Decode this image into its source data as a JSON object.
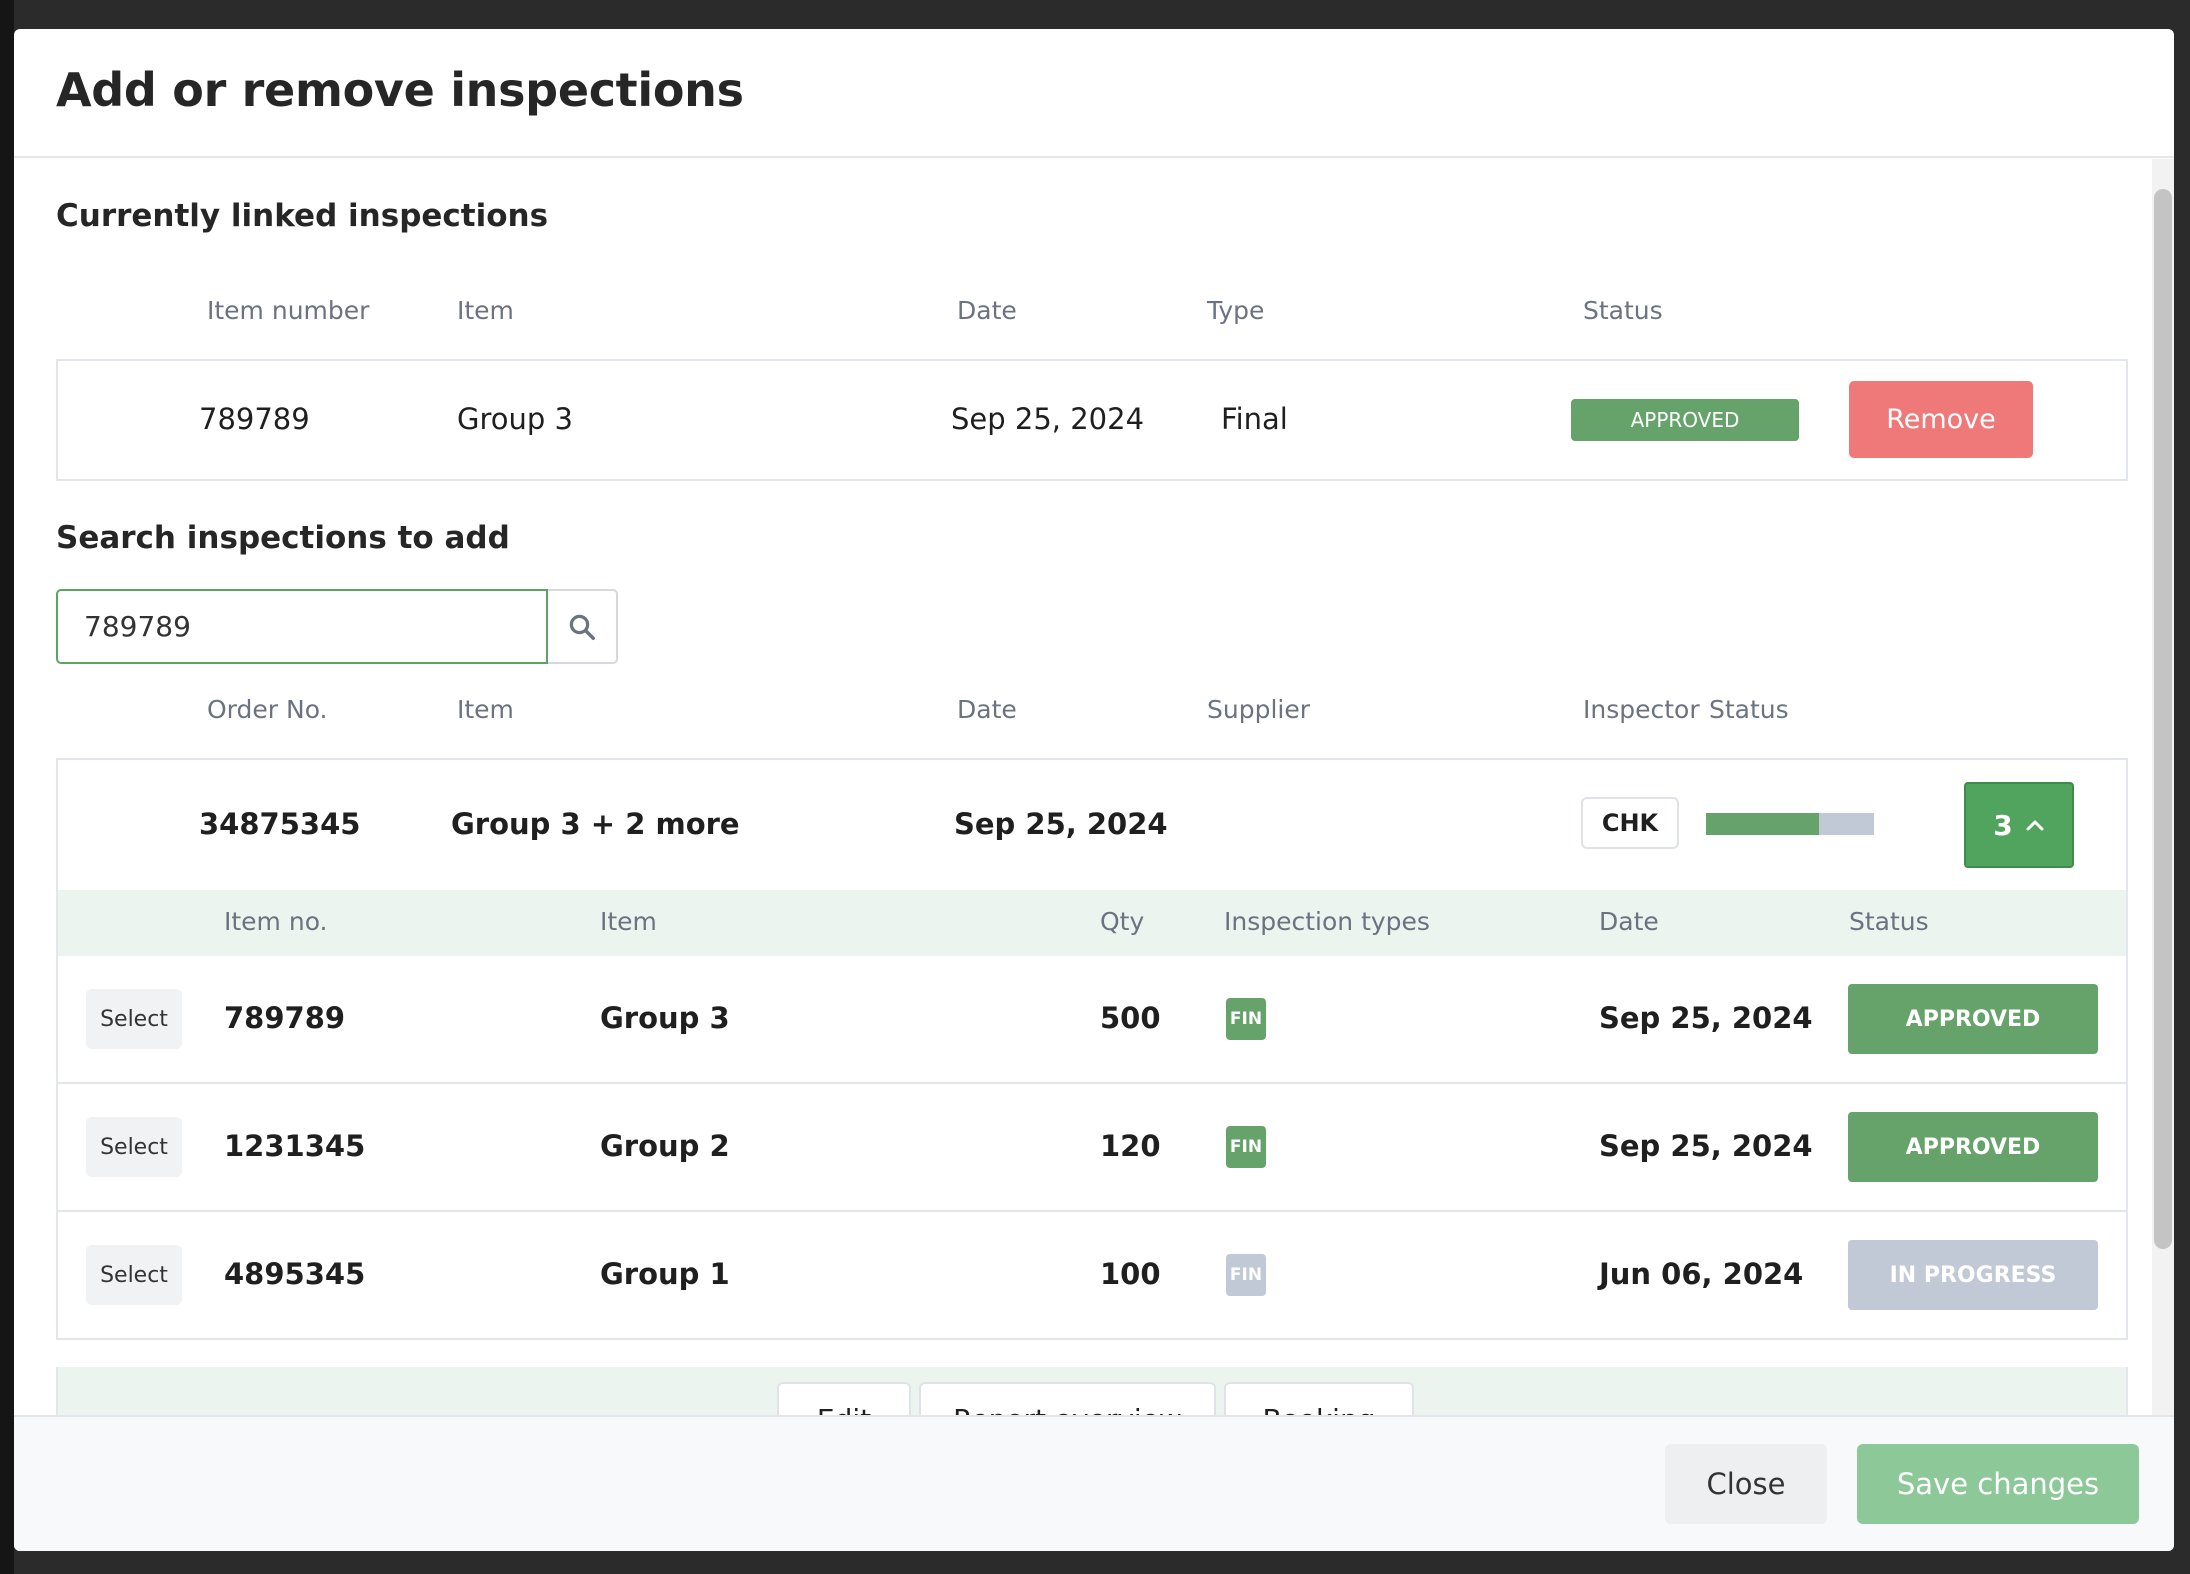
{
  "modal": {
    "title": "Add or remove inspections"
  },
  "linked": {
    "title": "Currently linked inspections",
    "headers": {
      "item_number": "Item number",
      "item": "Item",
      "date": "Date",
      "type": "Type",
      "status": "Status"
    },
    "row": {
      "item_number": "789789",
      "item": "Group 3",
      "date": "Sep 25, 2024",
      "type": "Final",
      "status": "APPROVED",
      "remove_label": "Remove"
    }
  },
  "search": {
    "title": "Search inspections to add",
    "value": "789789",
    "headers": {
      "order_no": "Order No.",
      "item": "Item",
      "date": "Date",
      "supplier": "Supplier",
      "inspector": "Inspector",
      "status": "Status"
    },
    "order": {
      "order_no": "34875345",
      "item": "Group 3 + 2 more",
      "date": "Sep 25, 2024",
      "inspector": "CHK",
      "progress_fraction": 0.67,
      "count": "3"
    },
    "sub_headers": {
      "item_no": "Item no.",
      "item": "Item",
      "qty": "Qty",
      "inspection_types": "Inspection types",
      "date": "Date",
      "status": "Status"
    },
    "sub_rows": [
      {
        "select_label": "Select",
        "item_no": "789789",
        "item": "Group 3",
        "qty": "500",
        "type": "FIN",
        "date": "Sep 25, 2024",
        "status": "APPROVED"
      },
      {
        "select_label": "Select",
        "item_no": "1231345",
        "item": "Group 2",
        "qty": "120",
        "type": "FIN",
        "date": "Sep 25, 2024",
        "status": "APPROVED"
      },
      {
        "select_label": "Select",
        "item_no": "4895345",
        "item": "Group 1",
        "qty": "100",
        "type": "FIN",
        "date": "Jun 06, 2024",
        "status": "IN PROGRESS"
      }
    ],
    "actions": {
      "edit": "Edit",
      "report_overview": "Report overview",
      "booking": "Booking"
    }
  },
  "footer": {
    "close_label": "Close",
    "save_label": "Save changes"
  },
  "colors": {
    "approved": "#66a36a",
    "in_progress": "#c1c8d6",
    "remove": "#ef7878",
    "accent": "#51a45d",
    "save": "#8dc898"
  },
  "icons": {
    "search": "search-icon",
    "toggle": "chevron-up-icon"
  }
}
